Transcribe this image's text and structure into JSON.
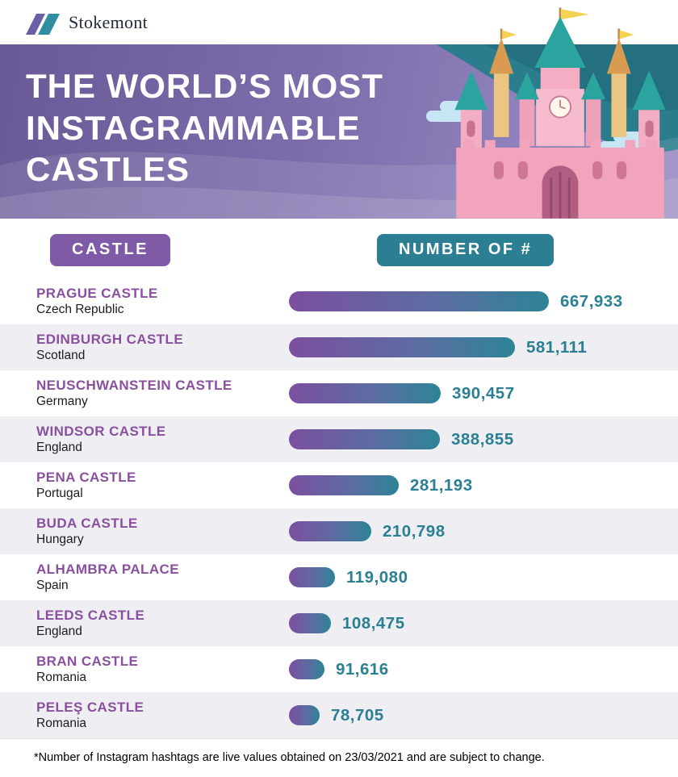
{
  "brand": {
    "name": "Stokemont"
  },
  "banner": {
    "title_lines": [
      "THE WORLD’S MOST",
      "INSTAGRAMMABLE",
      "CASTLES"
    ]
  },
  "table": {
    "col_castle": "CASTLE",
    "col_number": "NUMBER OF #"
  },
  "rows": [
    {
      "name": "PRAGUE CASTLE",
      "country": "Czech Republic",
      "count": "667,933"
    },
    {
      "name": "EDINBURGH CASTLE",
      "country": "Scotland",
      "count": "581,111"
    },
    {
      "name": "NEUSCHWANSTEIN CASTLE",
      "country": "Germany",
      "count": "390,457"
    },
    {
      "name": "WINDSOR CASTLE",
      "country": "England",
      "count": "388,855"
    },
    {
      "name": "PENA CASTLE",
      "country": "Portugal",
      "count": "281,193"
    },
    {
      "name": "BUDA CASTLE",
      "country": "Hungary",
      "count": "210,798"
    },
    {
      "name": "ALHAMBRA PALACE",
      "country": "Spain",
      "count": "119,080"
    },
    {
      "name": "LEEDS CASTLE",
      "country": "England",
      "count": "108,475"
    },
    {
      "name": "BRAN CASTLE",
      "country": "Romania",
      "count": "91,616"
    },
    {
      "name": "PELEŞ CASTLE",
      "country": "Romania",
      "count": "78,705"
    }
  ],
  "footnote": "*Number of Instagram hashtags are live values obtained on 23/03/2021 and are subject to change.",
  "colors": {
    "purple": "#7e5aa7",
    "teal": "#2c7f93",
    "bar_gradient_start": "#7b4f9f",
    "bar_gradient_end": "#2d8496",
    "banner_purple": "#7c6cab",
    "name_text": "#8a4f9f",
    "count_text": "#2a7f93"
  },
  "icons": {
    "logo_mark": "stokemont-chevrons",
    "castle_illustration": "fairy-tale-castle"
  },
  "chart_data": {
    "type": "bar",
    "orientation": "horizontal",
    "title": "THE WORLD’S MOST INSTAGRAMMABLE CASTLES",
    "categories": [
      "Prague Castle (Czech Republic)",
      "Edinburgh Castle (Scotland)",
      "Neuschwanstein Castle (Germany)",
      "Windsor Castle (England)",
      "Pena Castle (Portugal)",
      "Buda Castle (Hungary)",
      "Alhambra Palace (Spain)",
      "Leeds Castle (England)",
      "Bran Castle (Romania)",
      "Peleş Castle (Romania)"
    ],
    "values": [
      667933,
      581111,
      390457,
      388855,
      281193,
      210798,
      119080,
      108475,
      91616,
      78705
    ],
    "value_labels": [
      "667,933",
      "581,111",
      "390,457",
      "388,855",
      "281,193",
      "210,798",
      "119,080",
      "108,475",
      "91,616",
      "78,705"
    ],
    "xlabel": "NUMBER OF #",
    "ylabel": "CASTLE",
    "xlim": [
      0,
      700000
    ],
    "grid": false,
    "legend": false,
    "note": "*Number of Instagram hashtags are live values obtained on 23/03/2021 and are subject to change."
  }
}
